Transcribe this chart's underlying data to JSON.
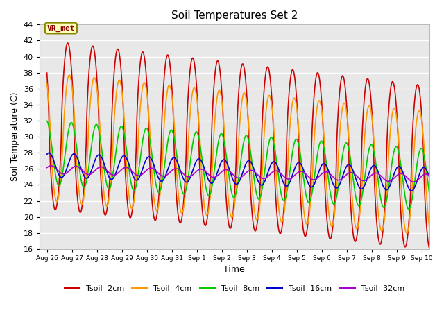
{
  "title": "Soil Temperatures Set 2",
  "xlabel": "Time",
  "ylabel": "Soil Temperature (C)",
  "ylim": [
    16,
    44
  ],
  "yticks": [
    16,
    18,
    20,
    22,
    24,
    26,
    28,
    30,
    32,
    34,
    36,
    38,
    40,
    42,
    44
  ],
  "x_tick_labels": [
    "Aug 26",
    "Aug 27",
    "Aug 28",
    "Aug 29",
    "Aug 30",
    "Aug 31",
    "Sep 1",
    "Sep 2",
    "Sep 3",
    "Sep 4",
    "Sep 5",
    "Sep 6",
    "Sep 7",
    "Sep 8",
    "Sep 9",
    "Sep 10"
  ],
  "x_tick_positions": [
    0,
    1,
    2,
    3,
    4,
    5,
    6,
    7,
    8,
    9,
    10,
    11,
    12,
    13,
    14,
    15
  ],
  "xlim": [
    -0.3,
    15.3
  ],
  "series": {
    "Tsoil -2cm": {
      "color": "#cc0000",
      "lw": 1.2
    },
    "Tsoil -4cm": {
      "color": "#ff9900",
      "lw": 1.2
    },
    "Tsoil -8cm": {
      "color": "#00cc00",
      "lw": 1.2
    },
    "Tsoil -16cm": {
      "color": "#0000cc",
      "lw": 1.2
    },
    "Tsoil -32cm": {
      "color": "#aa00cc",
      "lw": 1.2
    }
  },
  "annotation_text": "VR_met",
  "bg_color": "#e8e8e8",
  "fig_bg_color": "#ffffff",
  "grid_color": "#ffffff",
  "grid_lw": 1.0
}
